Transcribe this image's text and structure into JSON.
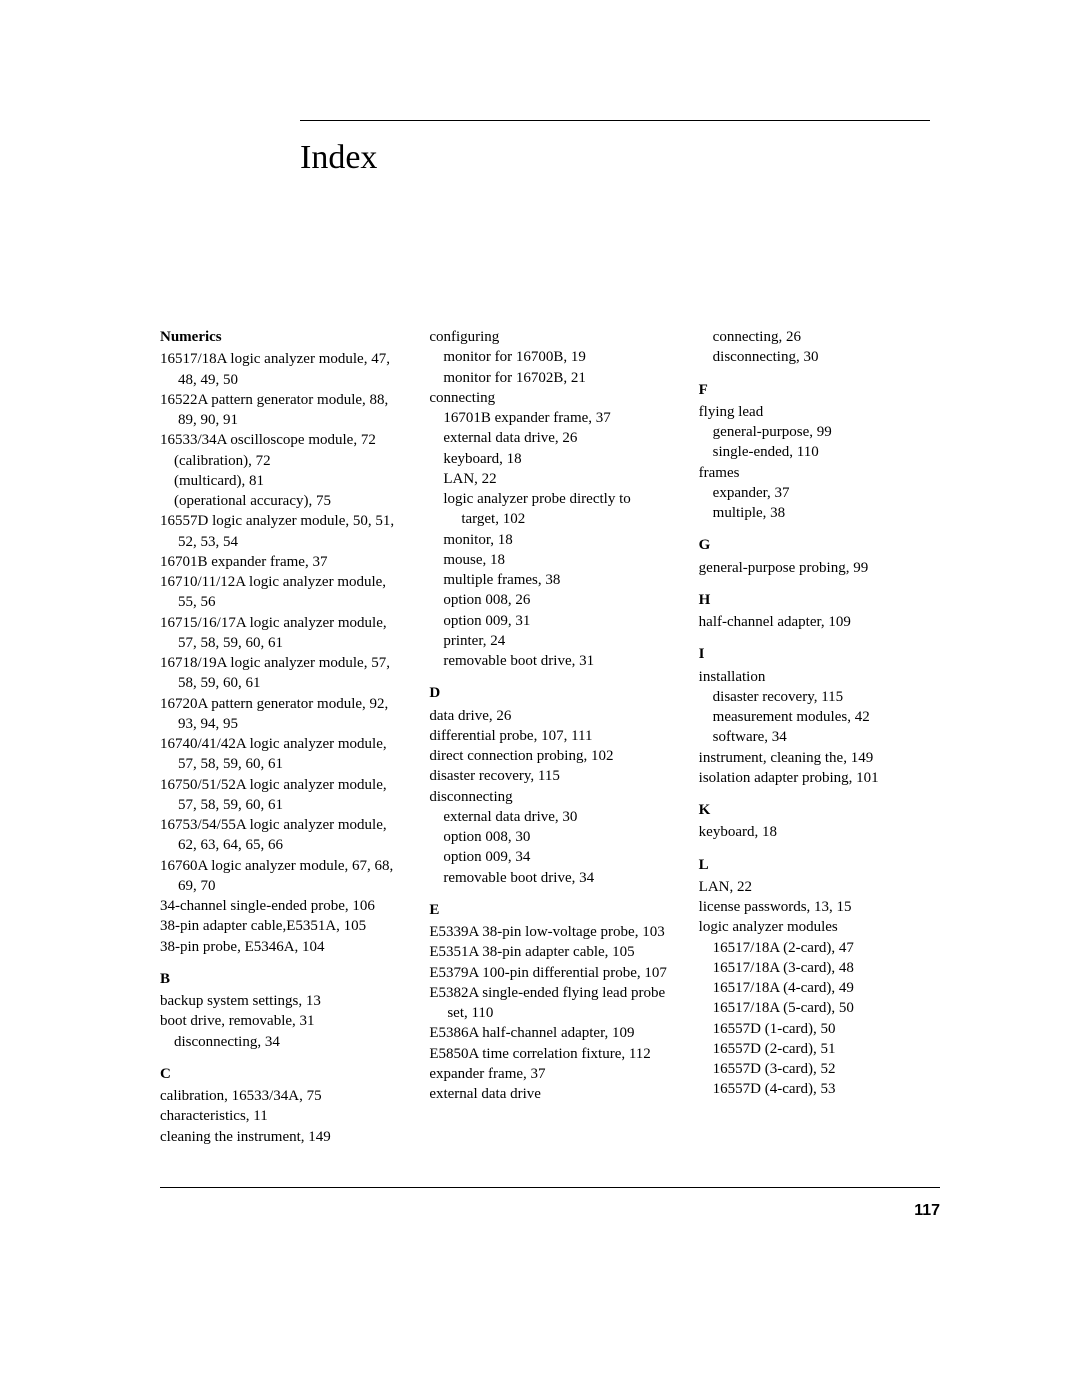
{
  "title": "Index",
  "page_number": "117",
  "col1": {
    "numerics_head": "Numerics",
    "n1": "16517/18A logic analyzer module, 47, 48, 49, 50",
    "n2": "16522A pattern generator module, 88, 89, 90, 91",
    "n3": "16533/34A oscilloscope module, 72",
    "n3a": "(calibration), 72",
    "n3b": "(multicard), 81",
    "n3c": "(operational accuracy), 75",
    "n4": "16557D logic analyzer module, 50, 51, 52, 53, 54",
    "n5": "16701B expander frame, 37",
    "n6": "16710/11/12A logic analyzer module, 55, 56",
    "n7": "16715/16/17A logic analyzer module, 57, 58, 59, 60, 61",
    "n8": "16718/19A logic analyzer module, 57, 58, 59, 60, 61",
    "n9": "16720A pattern generator module, 92, 93, 94, 95",
    "n10": "16740/41/42A logic analyzer module, 57, 58, 59, 60, 61",
    "n11": "16750/51/52A logic analyzer module, 57, 58, 59, 60, 61",
    "n12": "16753/54/55A logic analyzer module, 62, 63, 64, 65, 66",
    "n13": "16760A logic analyzer module, 67, 68, 69, 70",
    "n14": "34-channel single-ended probe, 106",
    "n15": "38-pin adapter cable,E5351A, 105",
    "n16": "38-pin probe, E5346A, 104",
    "b_head": "B",
    "b1": "backup system settings, 13",
    "b2": "boot drive, removable, 31",
    "b2a": "disconnecting, 34",
    "c_head": "C",
    "c1": "calibration, 16533/34A, 75",
    "c2": "characteristics, 11",
    "c3": "cleaning the instrument, 149"
  },
  "col2": {
    "cfg": "configuring",
    "cfg1": "monitor for 16700B, 19",
    "cfg2": "monitor for 16702B, 21",
    "con": "connecting",
    "con1": "16701B expander frame, 37",
    "con2": "external data drive, 26",
    "con3": "keyboard, 18",
    "con4": "LAN, 22",
    "con5": "logic analyzer probe directly to target, 102",
    "con6": "monitor, 18",
    "con7": "mouse, 18",
    "con8": "multiple frames, 38",
    "con9": "option 008, 26",
    "con10": "option 009, 31",
    "con11": "printer, 24",
    "con12": "removable boot drive, 31",
    "d_head": "D",
    "d1": "data drive, 26",
    "d2": "differential probe, 107, 111",
    "d3": "direct connection probing, 102",
    "d4": "disaster recovery, 115",
    "d5": "disconnecting",
    "d5a": "external data drive, 30",
    "d5b": "option 008, 30",
    "d5c": "option 009, 34",
    "d5d": "removable boot drive, 34",
    "e_head": "E",
    "e1": "E5339A 38-pin low-voltage probe, 103",
    "e2": "E5351A 38-pin adapter cable, 105",
    "e3": "E5379A 100-pin differential probe, 107",
    "e4": "E5382A single-ended flying lead probe set, 110",
    "e5": "E5386A half-channel adapter, 109",
    "e6": "E5850A time correlation fixture, 112",
    "e7": "expander frame, 37",
    "e8": "external data drive"
  },
  "col3": {
    "ext1": "connecting, 26",
    "ext2": "disconnecting, 30",
    "f_head": "F",
    "f1": "flying lead",
    "f1a": "general-purpose, 99",
    "f1b": "single-ended, 110",
    "f2": "frames",
    "f2a": "expander, 37",
    "f2b": "multiple, 38",
    "g_head": "G",
    "g1": "general-purpose probing, 99",
    "h_head": "H",
    "h1": "half-channel adapter, 109",
    "i_head": "I",
    "i1": "installation",
    "i1a": "disaster recovery, 115",
    "i1b": "measurement modules, 42",
    "i1c": "software, 34",
    "i2": "instrument, cleaning the, 149",
    "i3": "isolation adapter probing, 101",
    "k_head": "K",
    "k1": "keyboard, 18",
    "l_head": "L",
    "l1": "LAN, 22",
    "l2": "license passwords, 13, 15",
    "l3": "logic analyzer modules",
    "l3a": "16517/18A (2-card), 47",
    "l3b": "16517/18A (3-card), 48",
    "l3c": "16517/18A (4-card), 49",
    "l3d": "16517/18A (5-card), 50",
    "l3e": "16557D (1-card), 50",
    "l3f": "16557D (2-card), 51",
    "l3g": "16557D (3-card), 52",
    "l3h": "16557D (4-card), 53"
  }
}
